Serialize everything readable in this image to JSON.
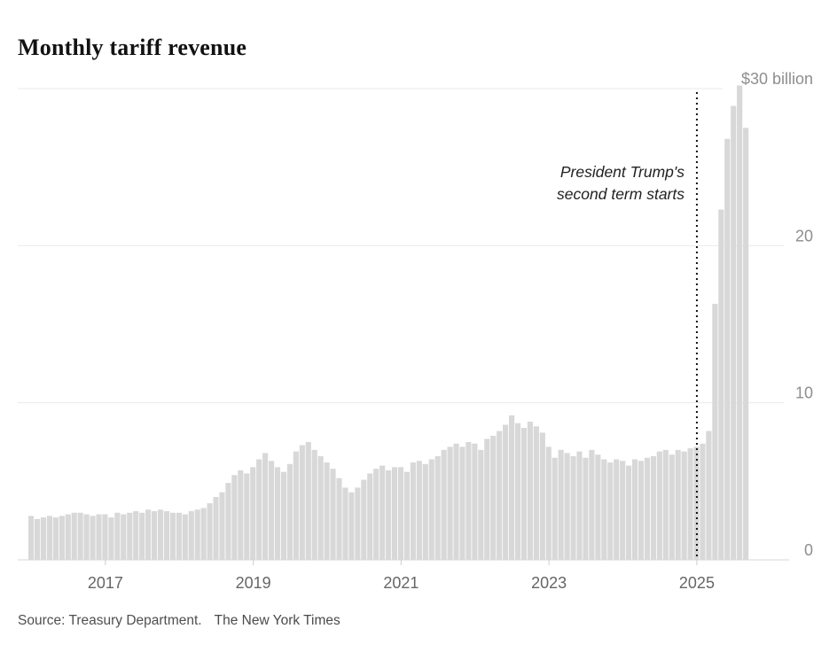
{
  "page": {
    "title": "Monthly tariff revenue"
  },
  "annotation": {
    "line1": "President Trump's",
    "line2": "second term starts"
  },
  "source": {
    "label": "Source: Treasury Department.",
    "credit": "The New York Times"
  },
  "colors": {
    "bar": "#d8d8d8",
    "gridline": "#eaeaea",
    "baseline": "#d7d7d7",
    "axis_text": "#8e8e8e",
    "tick_text": "#666666",
    "event_line": "#111111",
    "title_text": "#121212"
  },
  "chart_data": {
    "type": "bar",
    "title": "Monthly tariff revenue",
    "unit": "USD billions per month",
    "frequency": "monthly",
    "start_month": "2016-01",
    "values": [
      2.8,
      2.6,
      2.7,
      2.8,
      2.7,
      2.8,
      2.9,
      3.0,
      3.0,
      2.9,
      2.8,
      2.9,
      2.9,
      2.7,
      3.0,
      2.9,
      3.0,
      3.1,
      3.0,
      3.2,
      3.1,
      3.2,
      3.1,
      3.0,
      3.0,
      2.9,
      3.1,
      3.2,
      3.3,
      3.6,
      4.0,
      4.3,
      4.9,
      5.4,
      5.7,
      5.5,
      5.9,
      6.4,
      6.8,
      6.3,
      5.9,
      5.6,
      6.1,
      6.9,
      7.3,
      7.5,
      7.0,
      6.6,
      6.2,
      5.8,
      5.2,
      4.6,
      4.3,
      4.6,
      5.1,
      5.5,
      5.8,
      6.0,
      5.7,
      5.9,
      5.9,
      5.6,
      6.2,
      6.3,
      6.1,
      6.4,
      6.6,
      7.0,
      7.2,
      7.4,
      7.2,
      7.5,
      7.4,
      7.0,
      7.7,
      7.9,
      8.2,
      8.6,
      9.2,
      8.7,
      8.4,
      8.8,
      8.5,
      8.1,
      7.2,
      6.5,
      7.0,
      6.8,
      6.6,
      6.9,
      6.5,
      7.0,
      6.7,
      6.4,
      6.2,
      6.4,
      6.3,
      6.0,
      6.4,
      6.3,
      6.5,
      6.6,
      6.9,
      7.0,
      6.7,
      7.0,
      6.9,
      7.1,
      7.2,
      7.4,
      8.2,
      16.3,
      22.3,
      26.8,
      28.9,
      30.2,
      27.5
    ],
    "ylim": [
      0,
      31
    ],
    "yticks": [
      0,
      10,
      20,
      30
    ],
    "ytick_labels": [
      "0",
      "10",
      "20",
      "$30 billion"
    ],
    "xtick_years": [
      "2017",
      "2019",
      "2021",
      "2023",
      "2025"
    ],
    "grid": "horizontal",
    "legend": "none",
    "event_line": {
      "month": "2025-01",
      "label": "President Trump's second term starts"
    }
  }
}
